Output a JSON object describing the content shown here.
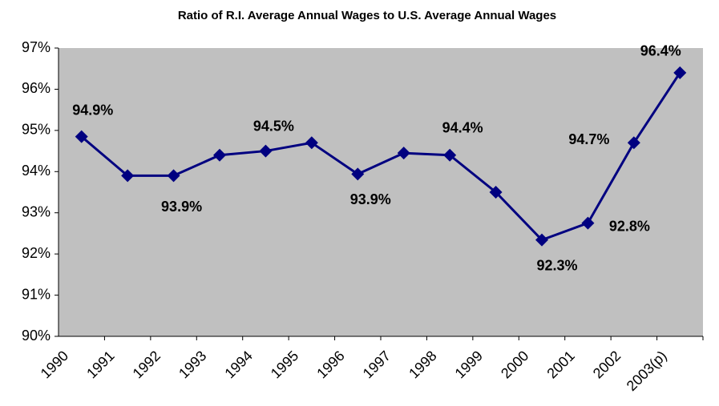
{
  "chart_data": {
    "type": "line",
    "title": "Ratio of R.I. Average Annual Wages to U.S. Average Annual Wages",
    "categories": [
      "1990",
      "1991",
      "1992",
      "1993",
      "1994",
      "1995",
      "1996",
      "1997",
      "1998",
      "1999",
      "2000",
      "2001",
      "2002",
      "2003(p)"
    ],
    "series": [
      {
        "color": "#000080",
        "values": [
          94.85,
          93.9,
          93.9,
          94.4,
          94.5,
          94.7,
          93.94,
          94.45,
          94.4,
          93.5,
          92.34,
          92.75,
          94.7,
          96.4
        ],
        "value_labels": [
          "94.9%",
          null,
          "93.9%",
          null,
          "94.5%",
          null,
          "93.9%",
          null,
          "94.4%",
          null,
          "92.3%",
          "92.8%",
          "94.7%",
          "96.4%"
        ]
      }
    ],
    "ylim": [
      90,
      97
    ],
    "yticks": [
      {
        "value": 90,
        "label": "90%"
      },
      {
        "value": 91,
        "label": "91%"
      },
      {
        "value": 92,
        "label": "92%"
      },
      {
        "value": 93,
        "label": "93%"
      },
      {
        "value": 94,
        "label": "94%"
      },
      {
        "value": 95,
        "label": "95%"
      },
      {
        "value": 96,
        "label": "96%"
      },
      {
        "value": 97,
        "label": "97%"
      }
    ],
    "plot_background": "#c0c0c0"
  }
}
